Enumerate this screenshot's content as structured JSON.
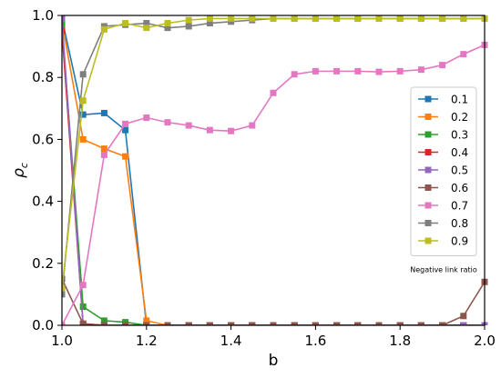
{
  "chart_data": {
    "type": "line",
    "xlabel": "b",
    "ylabel": "ρ",
    "ylabel_sub": "c",
    "xlim": [
      1.0,
      2.0
    ],
    "ylim": [
      0.0,
      1.0
    ],
    "xticks": [
      "1.0",
      "1.2",
      "1.4",
      "1.6",
      "1.8",
      "2.0"
    ],
    "yticks": [
      "0.0",
      "0.2",
      "0.4",
      "0.6",
      "0.8",
      "1.0"
    ],
    "legend_title": "Negative link ratio",
    "legend_position": "right",
    "grid": false,
    "marker": "square",
    "x": [
      1.0,
      1.05,
      1.1,
      1.15,
      1.2,
      1.25,
      1.3,
      1.35,
      1.4,
      1.45,
      1.5,
      1.55,
      1.6,
      1.65,
      1.7,
      1.75,
      1.8,
      1.85,
      1.9,
      1.95,
      2.0
    ],
    "series": [
      {
        "name": "0.1",
        "color": "#1f77b4",
        "values": [
          0.99,
          0.68,
          0.685,
          0.63,
          0.0,
          0,
          0,
          0,
          0,
          0,
          0,
          0,
          0,
          0,
          0,
          0,
          0,
          0,
          0,
          0,
          0
        ]
      },
      {
        "name": "0.2",
        "color": "#ff7f0e",
        "values": [
          0.98,
          0.6,
          0.57,
          0.545,
          0.015,
          0,
          0,
          0,
          0,
          0,
          0,
          0,
          0,
          0,
          0,
          0,
          0,
          0,
          0,
          0,
          0
        ]
      },
      {
        "name": "0.3",
        "color": "#2ca02c",
        "values": [
          0.97,
          0.06,
          0.015,
          0.01,
          0.0,
          0,
          0,
          0,
          0,
          0,
          0,
          0,
          0,
          0,
          0,
          0,
          0,
          0,
          0,
          0,
          0
        ]
      },
      {
        "name": "0.4",
        "color": "#d62728",
        "values": [
          0.95,
          0.005,
          0.0,
          0.0,
          0.0,
          0,
          0,
          0,
          0,
          0,
          0,
          0,
          0,
          0,
          0,
          0,
          0,
          0,
          0,
          0,
          0
        ]
      },
      {
        "name": "0.5",
        "color": "#9467bd",
        "values": [
          0.99,
          0.0,
          0.0,
          0.0,
          0.0,
          0,
          0,
          0,
          0,
          0,
          0,
          0,
          0,
          0,
          0,
          0,
          0,
          0,
          0,
          0,
          0
        ]
      },
      {
        "name": "0.6",
        "color": "#8c564b",
        "values": [
          0.15,
          0.005,
          0,
          0,
          0,
          0,
          0,
          0,
          0,
          0,
          0,
          0,
          0,
          0,
          0,
          0,
          0,
          0,
          0,
          0.03,
          0.14
        ]
      },
      {
        "name": "0.7",
        "color": "#e377c2",
        "values": [
          0.0,
          0.13,
          0.55,
          0.65,
          0.67,
          0.655,
          0.645,
          0.63,
          0.627,
          0.645,
          0.75,
          0.81,
          0.82,
          0.82,
          0.82,
          0.818,
          0.82,
          0.825,
          0.84,
          0.875,
          0.905
        ]
      },
      {
        "name": "0.8",
        "color": "#7f7f7f",
        "values": [
          0.1,
          0.81,
          0.965,
          0.97,
          0.975,
          0.96,
          0.965,
          0.975,
          0.98,
          0.985,
          0.99,
          0.99,
          0.99,
          0.99,
          0.99,
          0.99,
          0.99,
          0.99,
          0.99,
          0.99,
          0.99
        ]
      },
      {
        "name": "0.9",
        "color": "#bcbd22",
        "values": [
          0.12,
          0.725,
          0.955,
          0.975,
          0.96,
          0.975,
          0.985,
          0.99,
          0.99,
          0.99,
          0.99,
          0.99,
          0.99,
          0.99,
          0.99,
          0.99,
          0.99,
          0.99,
          0.99,
          0.99,
          0.99
        ]
      }
    ]
  }
}
